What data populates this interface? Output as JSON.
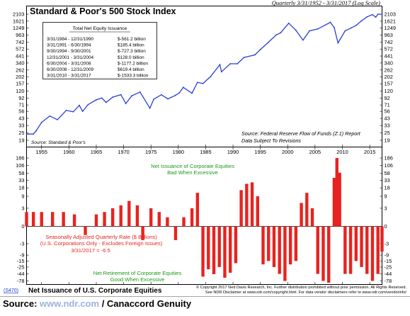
{
  "header": {
    "title": "Standard & Poor's 500 Stock Index",
    "period_note": "Quarterly 3/31/1952 - 3/31/2017 (Log Scale)"
  },
  "top_panel": {
    "source_left": "Source: Standard & Poor's",
    "source_right": "Source: Federal Reserve Flow of Funds (Z.1) Report",
    "source_right_2": "Data Subject To Revisions",
    "table_title": "Total Net Equity Issuance",
    "table_rows": [
      {
        "period": "3/31/1984 - 12/31/1990",
        "value": "$-561.2 billion"
      },
      {
        "period": "3/31/1991 - 6/30/1994",
        "value": "$185.4 billion"
      },
      {
        "period": "9/30/1994 - 9/30/2001",
        "value": "$-727.3 billion"
      },
      {
        "period": "12/31/2001 - 3/31/2004",
        "value": "$128.0 billion"
      },
      {
        "period": "6/30/2004 - 3/31/2008",
        "value": "$-1177.2 billion"
      },
      {
        "period": "6/30/2008 - 12/31/2009",
        "value": "$619.4 billion"
      },
      {
        "period": "3/31/2010 - 3/31/2017",
        "value": "$-1533.3 billion"
      }
    ]
  },
  "bottom_panel": {
    "annotation_top_1": "Net Issuance of Corporate Equities",
    "annotation_top_2": "Bad When Excessive",
    "annotation_mid_1": "Seasonally Adjusted Quarterly Rate ($ Billions)",
    "annotation_mid_2": "(U.S. Corporations Only - Excludes Foreign Issues)",
    "annotation_mid_3": "3/31/2017 = -6.5",
    "annotation_bot_1": "Net Retirement of Corporate Equities",
    "annotation_bot_2": "Good When Excessive",
    "chart_id_tag": "(S470)",
    "bottom_title": "Net Issuance of U.S. Corporate Equities",
    "copyright_1": "© Copyright 2017 Ned Davis Research, Inc. Further distribution prohibited without prior permission. All Rights Reserved.",
    "copyright_2": "See NDR Disclaimer at www.ndr.com/copyright.html. For data vendor disclaimers refer to www.ndr.com/vendorinfo/"
  },
  "footer": {
    "source_label": "Source:",
    "source_link": "www.ndr.com",
    "source_tail": "/ Canaccord Genuity"
  },
  "colors": {
    "line": "#2b3fd6",
    "bar": "#e8231f",
    "annotation_green": "#1a9a1a",
    "annotation_red": "#e8231f",
    "link": "#9db3dd",
    "tag_blue": "#1a3cc8"
  },
  "chart_data": [
    {
      "type": "line",
      "title": "Standard & Poor's 500 Stock Index",
      "scale": "log",
      "ylim": [
        19,
        2103
      ],
      "y_ticks": [
        19,
        25,
        33,
        43,
        56,
        71,
        92,
        120,
        157,
        202,
        262,
        340,
        441,
        572,
        742,
        963,
        1249,
        1621,
        2103
      ],
      "x_ticks": [
        1955,
        1960,
        1965,
        1970,
        1975,
        1980,
        1985,
        1990,
        1995,
        2000,
        2005,
        2010,
        2015
      ],
      "xlim": [
        1952.25,
        2017.25
      ],
      "series": [
        {
          "x": [
            1952.25,
            1953.5,
            1954.0,
            1955.0,
            1956.5,
            1957.9,
            1959.5,
            1960.8,
            1961.9,
            1962.5,
            1963.5,
            1965.0,
            1966.0,
            1966.8,
            1968.0,
            1969.5,
            1970.4,
            1971.5,
            1973.0,
            1974.8,
            1975.5,
            1976.9,
            1978.1,
            1979.5,
            1980.2,
            1980.9,
            1982.5,
            1983.5,
            1984.5,
            1985.9,
            1987.6,
            1987.9,
            1989.5,
            1990.8,
            1992.0,
            1994.0,
            1995.0,
            1996.5,
            1997.9,
            1998.7,
            2000.2,
            2001.5,
            2002.8,
            2004.0,
            2005.5,
            2007.8,
            2008.5,
            2009.2,
            2010.5,
            2011.6,
            2012.5,
            2013.5,
            2014.5,
            2015.5,
            2016.1,
            2016.5,
            2017.25
          ],
          "values": [
            24,
            24,
            27,
            37,
            47,
            41,
            58,
            55,
            70,
            56,
            72,
            86,
            92,
            78,
            95,
            104,
            75,
            100,
            115,
            63,
            88,
            104,
            89,
            102,
            112,
            137,
            110,
            165,
            158,
            205,
            320,
            245,
            330,
            330,
            418,
            460,
            560,
            740,
            970,
            1050,
            1500,
            1150,
            800,
            1130,
            1210,
            1550,
            1280,
            720,
            1130,
            1260,
            1380,
            1640,
            1900,
            2070,
            1880,
            2100,
            2360
          ]
        }
      ]
    },
    {
      "type": "bar",
      "title": "Net Issuance of U.S. Corporate Equities",
      "ylabel": "Seasonally Adjusted Quarterly Rate ($ Billions)",
      "scale": "symlog",
      "y_ticks": [
        186,
        106,
        58,
        33,
        18,
        9,
        3,
        0,
        -3,
        -9,
        -15,
        -25,
        -44,
        -78
      ],
      "xlim": [
        1952.25,
        2017.25
      ],
      "x": [
        1952.25,
        1953.5,
        1955.0,
        1957.0,
        1959.0,
        1961.0,
        1963.0,
        1965.0,
        1966.5,
        1968.0,
        1969.5,
        1971.0,
        1972.5,
        1973.5,
        1975.0,
        1976.5,
        1978.0,
        1979.5,
        1981.0,
        1982.5,
        1983.5,
        1984.5,
        1985.5,
        1986.5,
        1987.5,
        1988.5,
        1989.5,
        1990.5,
        1991.5,
        1992.5,
        1993.5,
        1994.5,
        1995.5,
        1996.5,
        1997.5,
        1998.5,
        1999.5,
        2000.5,
        2001.5,
        2002.5,
        2003.5,
        2004.5,
        2005.5,
        2006.5,
        2007.5,
        2008.5,
        2009.0,
        2009.5,
        2010.5,
        2011.5,
        2012.5,
        2013.5,
        2014.5,
        2015.5,
        2016.5,
        2017.25
      ],
      "values": [
        2,
        2,
        2,
        2,
        2,
        1.5,
        -1,
        1.5,
        2,
        3,
        4,
        6,
        4,
        -2,
        3,
        2,
        1,
        -2,
        1,
        3,
        12,
        -55,
        -30,
        -45,
        -25,
        -60,
        -40,
        -18,
        15,
        25,
        28,
        9,
        -20,
        -15,
        -25,
        -44,
        -78,
        -20,
        -15,
        5,
        12,
        3,
        -44,
        -78,
        -90,
        40,
        186,
        60,
        -44,
        -44,
        -15,
        -25,
        -44,
        -78,
        -44,
        -6.5
      ]
    }
  ]
}
